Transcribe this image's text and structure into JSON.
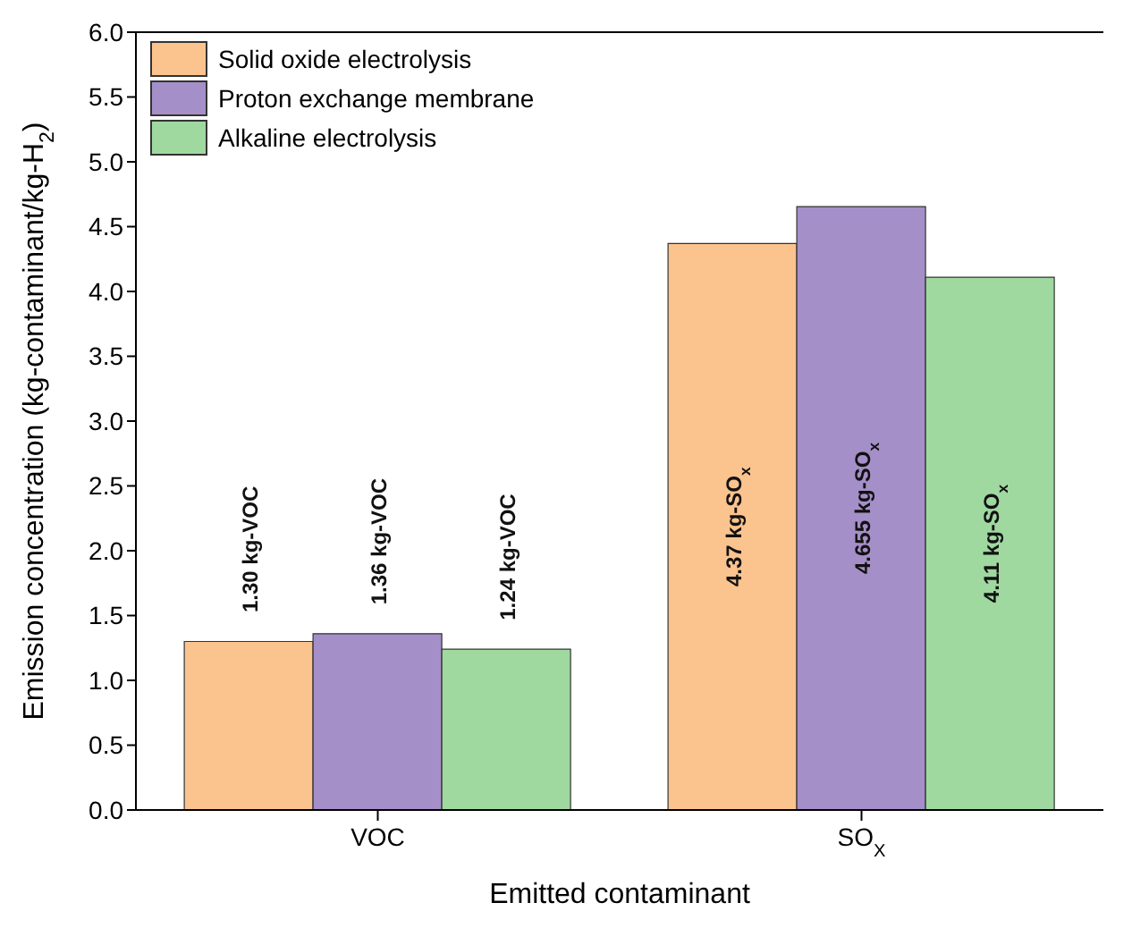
{
  "chart_data": {
    "type": "bar",
    "xlabel": "Emitted contaminant",
    "ylabel": "Emission concentration (kg-contaminant/kg-H$_{2}$)",
    "categories": [
      "VOC",
      "SO$_{X}$"
    ],
    "series": [
      {
        "name": "Solid oxide electrolysis",
        "color": "#fbc38e",
        "values": [
          1.3,
          4.37
        ],
        "value_labels": [
          "1.30 kg-VOC",
          "4.37 kg-SO$_{x}$"
        ]
      },
      {
        "name": "Proton exchange membrane",
        "color": "#a58fc8",
        "values": [
          1.36,
          4.655
        ],
        "value_labels": [
          "1.36 kg-VOC",
          "4.655 kg-SO$_{x}$"
        ]
      },
      {
        "name": "Alkaline electrolysis",
        "color": "#9fd9a0",
        "values": [
          1.24,
          4.11
        ],
        "value_labels": [
          "1.24 kg-VOC",
          "4.11 kg-SO$_{x}$"
        ]
      }
    ],
    "ylim": [
      0,
      6
    ],
    "yticks": [
      {
        "value": 0,
        "label": "0.0"
      },
      {
        "value": 0.5,
        "label": "0.5"
      },
      {
        "value": 1,
        "label": "1.0"
      },
      {
        "value": 1.5,
        "label": "1.5"
      },
      {
        "value": 2,
        "label": "2.0"
      },
      {
        "value": 2.5,
        "label": "2.5"
      },
      {
        "value": 3,
        "label": "3.0"
      },
      {
        "value": 3.5,
        "label": "3.5"
      },
      {
        "value": 4,
        "label": "4.0"
      },
      {
        "value": 4.5,
        "label": "4.5"
      },
      {
        "value": 5,
        "label": "5.0"
      },
      {
        "value": 5.5,
        "label": "5.5"
      },
      {
        "value": 6,
        "label": "6.0"
      }
    ],
    "grid": false,
    "legend": "top left"
  }
}
